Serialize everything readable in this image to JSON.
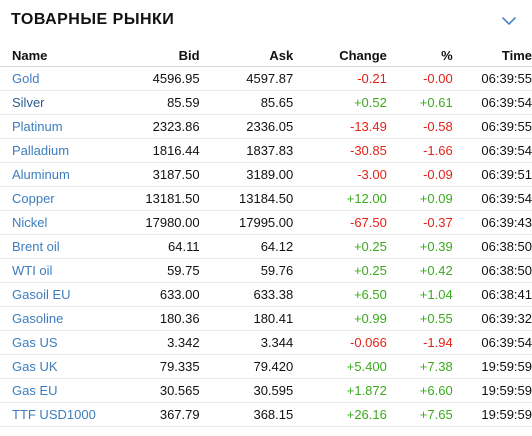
{
  "widget": {
    "title": "ТОВАРНЫЕ РЫНКИ",
    "collapse_icon": "chevron-down-icon"
  },
  "table": {
    "headers": {
      "name": "Name",
      "bid": "Bid",
      "ask": "Ask",
      "change": "Change",
      "percent": "%",
      "time": "Time"
    },
    "rows": [
      {
        "name": "Gold",
        "bid": "4596.95",
        "ask": "4597.87",
        "change": "-0.21",
        "percent": "-0.00",
        "time": "06:39:55",
        "dir": "down",
        "name_style": "normal"
      },
      {
        "name": "Silver",
        "bid": "85.59",
        "ask": "85.65",
        "change": "+0.52",
        "percent": "+0.61",
        "time": "06:39:54",
        "dir": "up",
        "name_style": "dark"
      },
      {
        "name": "Platinum",
        "bid": "2323.86",
        "ask": "2336.05",
        "change": "-13.49",
        "percent": "-0.58",
        "time": "06:39:55",
        "dir": "down",
        "name_style": "normal"
      },
      {
        "name": "Palladium",
        "bid": "1816.44",
        "ask": "1837.83",
        "change": "-30.85",
        "percent": "-1.66",
        "time": "06:39:54",
        "dir": "down",
        "name_style": "normal"
      },
      {
        "name": "Aluminum",
        "bid": "3187.50",
        "ask": "3189.00",
        "change": "-3.00",
        "percent": "-0.09",
        "time": "06:39:51",
        "dir": "down",
        "name_style": "normal"
      },
      {
        "name": "Copper",
        "bid": "13181.50",
        "ask": "13184.50",
        "change": "+12.00",
        "percent": "+0.09",
        "time": "06:39:54",
        "dir": "up",
        "name_style": "normal"
      },
      {
        "name": "Nickel",
        "bid": "17980.00",
        "ask": "17995.00",
        "change": "-67.50",
        "percent": "-0.37",
        "time": "06:39:43",
        "dir": "down",
        "name_style": "normal"
      },
      {
        "name": "Brent oil",
        "bid": "64.11",
        "ask": "64.12",
        "change": "+0.25",
        "percent": "+0.39",
        "time": "06:38:50",
        "dir": "up",
        "name_style": "normal"
      },
      {
        "name": "WTI oil",
        "bid": "59.75",
        "ask": "59.76",
        "change": "+0.25",
        "percent": "+0.42",
        "time": "06:38:50",
        "dir": "up",
        "name_style": "normal"
      },
      {
        "name": "Gasoil EU",
        "bid": "633.00",
        "ask": "633.38",
        "change": "+6.50",
        "percent": "+1.04",
        "time": "06:38:41",
        "dir": "up",
        "name_style": "normal"
      },
      {
        "name": "Gasoline",
        "bid": "180.36",
        "ask": "180.41",
        "change": "+0.99",
        "percent": "+0.55",
        "time": "06:39:32",
        "dir": "up",
        "name_style": "normal"
      },
      {
        "name": "Gas US",
        "bid": "3.342",
        "ask": "3.344",
        "change": "-0.066",
        "percent": "-1.94",
        "time": "06:39:54",
        "dir": "down",
        "name_style": "normal"
      },
      {
        "name": "Gas UK",
        "bid": "79.335",
        "ask": "79.420",
        "change": "+5.400",
        "percent": "+7.38",
        "time": "19:59:59",
        "dir": "up",
        "name_style": "normal"
      },
      {
        "name": "Gas EU",
        "bid": "30.565",
        "ask": "30.595",
        "change": "+1.872",
        "percent": "+6.60",
        "time": "19:59:59",
        "dir": "up",
        "name_style": "normal"
      },
      {
        "name": "TTF USD1000",
        "bid": "367.79",
        "ask": "368.15",
        "change": "+26.16",
        "percent": "+7.65",
        "time": "19:59:59",
        "dir": "up",
        "name_style": "normal"
      }
    ]
  },
  "colors": {
    "up": "#3cab1e",
    "down": "#e2231a",
    "link": "#3d7dbf",
    "chevron": "#4a86c5"
  }
}
